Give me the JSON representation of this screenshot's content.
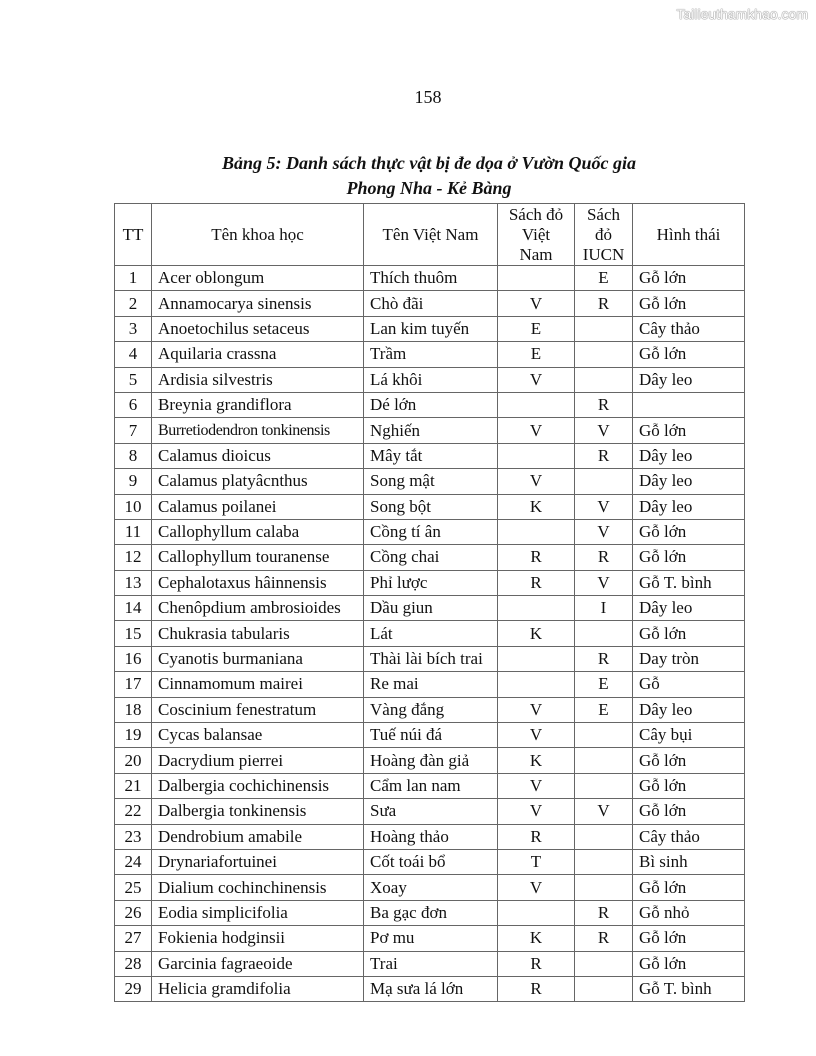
{
  "watermark": "Tailieuthamkhao.com",
  "page_number": "158",
  "title_line1": "Bảng 5: Danh sách thực vật bị đe dọa ở Vườn Quốc gia",
  "title_line2": "Phong Nha - Kẻ Bàng",
  "table": {
    "headers": [
      "TT",
      "Tên khoa học",
      "Tên Việt Nam",
      "Sách đỏ Việt Nam",
      "Sách đỏ IUCN",
      "Hình thái"
    ],
    "rows": [
      [
        "1",
        "Acer oblongum",
        "Thích thuôm",
        "",
        "E",
        "Gỗ lớn"
      ],
      [
        "2",
        "Annamocarya sinensis",
        "Chò đãi",
        "V",
        "R",
        "Gỗ lớn"
      ],
      [
        "3",
        "Anoetochilus setaceus",
        "Lan kim tuyến",
        "E",
        "",
        "Cây thảo"
      ],
      [
        "4",
        "Aquilaria crassna",
        "Trầm",
        "E",
        "",
        "Gỗ lớn"
      ],
      [
        "5",
        "Ardisia silvestris",
        "Lá khôi",
        "V",
        "",
        "Dây leo"
      ],
      [
        "6",
        "Breynia grandiflora",
        "Dé lớn",
        "",
        "R",
        ""
      ],
      [
        "7",
        "Burretiodendron tonkinensis",
        "Nghiến",
        "V",
        "V",
        "Gỗ lớn"
      ],
      [
        "8",
        "Calamus dioicus",
        "Mây tắt",
        "",
        "R",
        "Dây leo"
      ],
      [
        "9",
        "Calamus platyâcnthus",
        "Song mật",
        "V",
        "",
        "Dây leo"
      ],
      [
        "10",
        "Calamus poilanei",
        "Song bột",
        "K",
        "V",
        "Dây leo"
      ],
      [
        "11",
        "Callophyllum calaba",
        "Cồng tí ân",
        "",
        "V",
        "Gỗ lớn"
      ],
      [
        "12",
        "Callophyllum touranense",
        "Cồng chai",
        "R",
        "R",
        "Gỗ lớn"
      ],
      [
        "13",
        "Cephalotaxus hâinnensis",
        "Phỉ lược",
        "R",
        "V",
        "Gỗ T. bình"
      ],
      [
        "14",
        "Chenôpdium ambrosioides",
        "Dầu giun",
        "",
        "I",
        "Dây leo"
      ],
      [
        "15",
        "Chukrasia tabularis",
        "Lát",
        "K",
        "",
        "Gỗ lớn"
      ],
      [
        "16",
        "Cyanotis burmaniana",
        "Thài lài bích trai",
        "",
        "R",
        "Day tròn"
      ],
      [
        "17",
        "Cinnamomum mairei",
        "Re mai",
        "",
        "E",
        "Gỗ"
      ],
      [
        "18",
        "Coscinium fenestratum",
        "Vàng đắng",
        "V",
        "E",
        "Dây leo"
      ],
      [
        "19",
        "Cycas balansae",
        "Tuế núi đá",
        "V",
        "",
        "Cây bụi"
      ],
      [
        "20",
        "Dacrydium pierrei",
        "Hoàng đàn giả",
        "K",
        "",
        "Gỗ lớn"
      ],
      [
        "21",
        "Dalbergia cochichinensis",
        "Cẩm lan nam",
        "V",
        "",
        "Gỗ lớn"
      ],
      [
        "22",
        "Dalbergia tonkinensis",
        "Sưa",
        "V",
        "V",
        "Gỗ lớn"
      ],
      [
        "23",
        "Dendrobium amabile",
        "Hoàng thảo",
        "R",
        "",
        "Cây thảo"
      ],
      [
        "24",
        "Drynariafortuinei",
        "Cốt toái bổ",
        "T",
        "",
        "Bì sinh"
      ],
      [
        "25",
        "Dialium cochinchinensis",
        "Xoay",
        "V",
        "",
        "Gỗ lớn"
      ],
      [
        "26",
        "Eodia simplicifolia",
        "Ba gạc đơn",
        "",
        "R",
        "Gỗ nhỏ"
      ],
      [
        "27",
        "Fokienia hodginsii",
        "Pơ mu",
        "K",
        "R",
        "Gỗ lớn"
      ],
      [
        "28",
        "Garcinia fagraeoide",
        "Trai",
        "R",
        "",
        "Gỗ lớn"
      ],
      [
        "29",
        "Helicia gramdifolia",
        "Mạ sưa lá lớn",
        "R",
        "",
        "Gỗ T. bình"
      ]
    ]
  }
}
